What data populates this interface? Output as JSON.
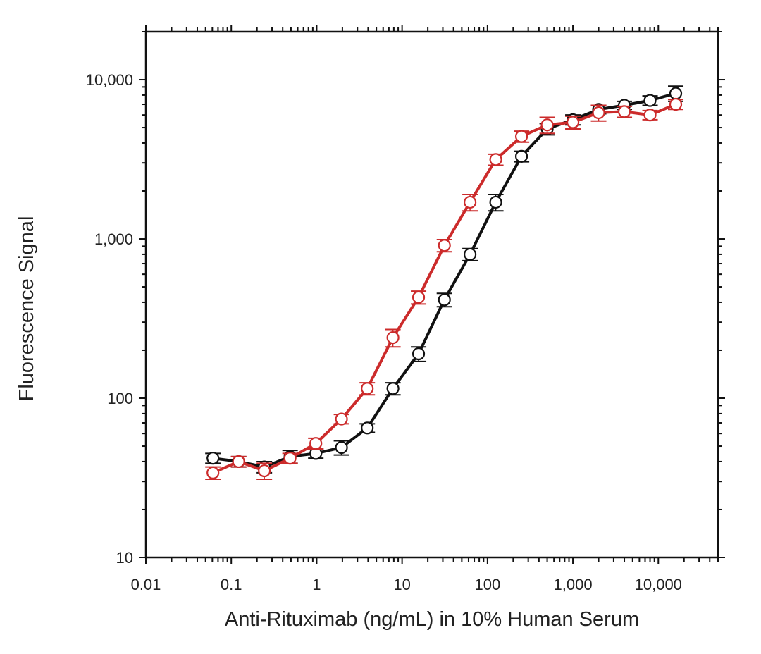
{
  "chart_data": {
    "type": "line",
    "title": "",
    "xlabel": "Anti-Rituximab (ng/mL) in 10% Human Serum",
    "ylabel": "Fluorescence Signal",
    "xscale": "log",
    "yscale": "log",
    "xlim": [
      0.01,
      50000
    ],
    "ylim": [
      10,
      20000
    ],
    "x_ticks": [
      {
        "value": 0.01,
        "label": "0.01"
      },
      {
        "value": 0.1,
        "label": "0.1"
      },
      {
        "value": 1,
        "label": "1"
      },
      {
        "value": 10,
        "label": "10"
      },
      {
        "value": 100,
        "label": "100"
      },
      {
        "value": 1000,
        "label": "1,000"
      },
      {
        "value": 10000,
        "label": "10,000"
      }
    ],
    "y_ticks": [
      {
        "value": 10,
        "label": "10"
      },
      {
        "value": 100,
        "label": "100"
      },
      {
        "value": 1000,
        "label": "1,000"
      },
      {
        "value": 10000,
        "label": "10,000"
      }
    ],
    "grid": false,
    "series": [
      {
        "name": "black",
        "color": "#111111",
        "points": [
          {
            "x": 0.061,
            "y": 42,
            "err": 3
          },
          {
            "x": 0.122,
            "y": 40,
            "err": 3
          },
          {
            "x": 0.244,
            "y": 37,
            "err": 3
          },
          {
            "x": 0.488,
            "y": 43,
            "err": 4
          },
          {
            "x": 0.977,
            "y": 45,
            "err": 3
          },
          {
            "x": 1.95,
            "y": 49,
            "err": 5
          },
          {
            "x": 3.91,
            "y": 65,
            "err": 4
          },
          {
            "x": 7.81,
            "y": 115,
            "err": 10
          },
          {
            "x": 15.6,
            "y": 190,
            "err": 20
          },
          {
            "x": 31.3,
            "y": 415,
            "err": 40
          },
          {
            "x": 62.5,
            "y": 800,
            "err": 70
          },
          {
            "x": 125,
            "y": 1700,
            "err": 200
          },
          {
            "x": 250,
            "y": 3300,
            "err": 250
          },
          {
            "x": 500,
            "y": 4900,
            "err": 400
          },
          {
            "x": 1000,
            "y": 5600,
            "err": 400
          },
          {
            "x": 2000,
            "y": 6500,
            "err": 400
          },
          {
            "x": 4000,
            "y": 6900,
            "err": 400
          },
          {
            "x": 8000,
            "y": 7400,
            "err": 500
          },
          {
            "x": 16000,
            "y": 8200,
            "err": 900
          }
        ]
      },
      {
        "name": "red",
        "color": "#cc2b2b",
        "points": [
          {
            "x": 0.061,
            "y": 34,
            "err": 3
          },
          {
            "x": 0.122,
            "y": 40,
            "err": 3
          },
          {
            "x": 0.244,
            "y": 35,
            "err": 4
          },
          {
            "x": 0.488,
            "y": 42,
            "err": 3
          },
          {
            "x": 0.977,
            "y": 52,
            "err": 4
          },
          {
            "x": 1.95,
            "y": 74,
            "err": 5
          },
          {
            "x": 3.91,
            "y": 115,
            "err": 10
          },
          {
            "x": 7.81,
            "y": 240,
            "err": 30
          },
          {
            "x": 15.6,
            "y": 430,
            "err": 40
          },
          {
            "x": 31.3,
            "y": 910,
            "err": 80
          },
          {
            "x": 62.5,
            "y": 1700,
            "err": 200
          },
          {
            "x": 125,
            "y": 3150,
            "err": 250
          },
          {
            "x": 250,
            "y": 4400,
            "err": 350
          },
          {
            "x": 500,
            "y": 5200,
            "err": 600
          },
          {
            "x": 1000,
            "y": 5400,
            "err": 500
          },
          {
            "x": 2000,
            "y": 6200,
            "err": 700
          },
          {
            "x": 4000,
            "y": 6300,
            "err": 500
          },
          {
            "x": 8000,
            "y": 6000,
            "err": 400
          },
          {
            "x": 16000,
            "y": 7000,
            "err": 500
          }
        ]
      }
    ]
  }
}
